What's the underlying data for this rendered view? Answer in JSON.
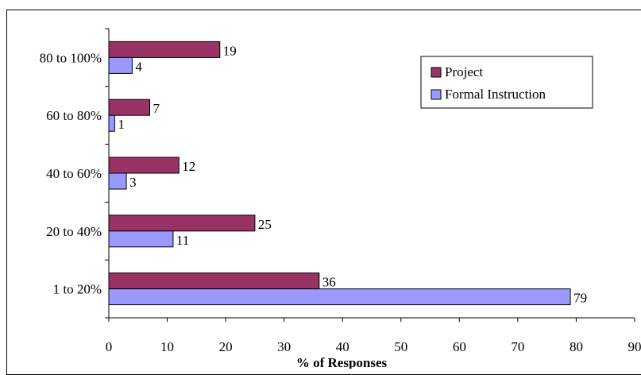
{
  "chart_data": {
    "type": "bar",
    "orientation": "horizontal",
    "categories": [
      "1 to 20%",
      "20 to 40%",
      "40 to 60%",
      "60 to 80%",
      "80 to 100%"
    ],
    "series": [
      {
        "name": "Project",
        "values": [
          36,
          25,
          12,
          7,
          19
        ],
        "color": "#993366"
      },
      {
        "name": "Formal Instruction",
        "values": [
          79,
          11,
          3,
          1,
          4
        ],
        "color": "#9999ff"
      }
    ],
    "xlabel": "% of Responses",
    "ylabel": "",
    "xlim": [
      0,
      90
    ],
    "xticks": [
      "0",
      "10",
      "20",
      "30",
      "40",
      "50",
      "60",
      "70",
      "80",
      "90"
    ],
    "grid": false,
    "data_labels": true,
    "legend_position": "top-right"
  }
}
